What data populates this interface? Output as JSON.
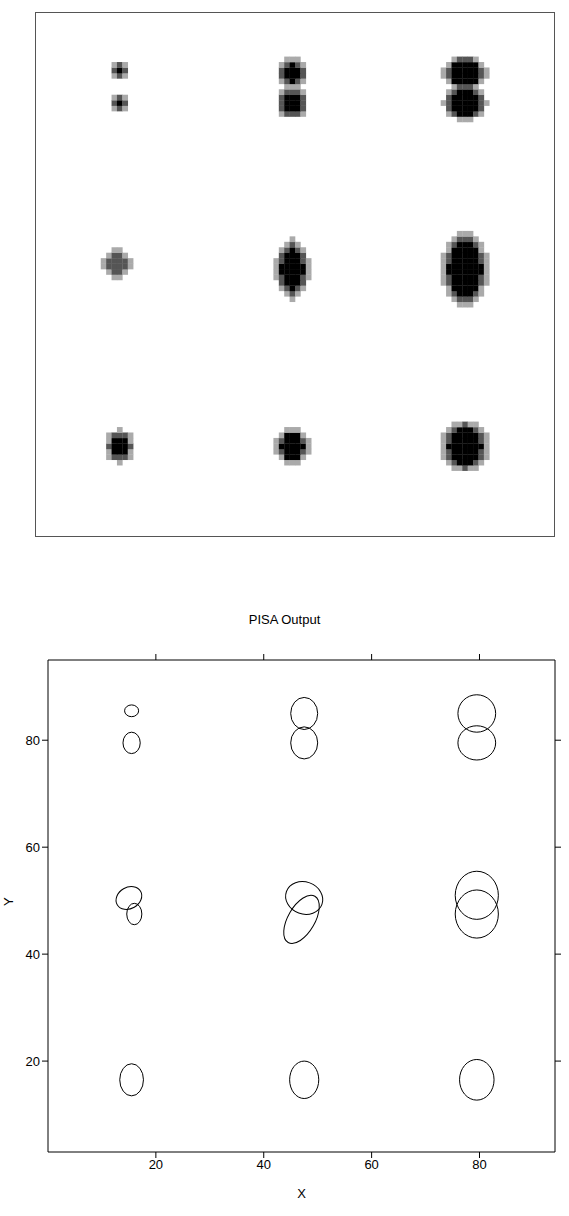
{
  "chart_data": [
    {
      "type": "image",
      "xlim": [
        0,
        96
      ],
      "ylim": [
        0,
        96
      ],
      "sources": [
        {
          "x": 15.5,
          "y": 85.5,
          "sx": 0.9,
          "sy": 0.9,
          "peak": 0.8
        },
        {
          "x": 15.5,
          "y": 79.5,
          "sx": 0.9,
          "sy": 1.0,
          "peak": 0.9
        },
        {
          "x": 15,
          "y": 50,
          "sx": 1.5,
          "sy": 1.5,
          "peak": 0.7
        },
        {
          "x": 15.5,
          "y": 16.5,
          "sx": 1.3,
          "sy": 1.5,
          "peak": 1.3
        },
        {
          "x": 47.5,
          "y": 85,
          "sx": 1.3,
          "sy": 1.2,
          "peak": 2
        },
        {
          "x": 47.5,
          "y": 79.5,
          "sx": 1.3,
          "sy": 1.2,
          "peak": 2
        },
        {
          "x": 47.5,
          "y": 49,
          "sx": 1.4,
          "sy": 2.5,
          "peak": 2
        },
        {
          "x": 47.5,
          "y": 16.5,
          "sx": 1.4,
          "sy": 1.6,
          "peak": 2
        },
        {
          "x": 79.5,
          "y": 85,
          "sx": 1.7,
          "sy": 1.3,
          "peak": 3
        },
        {
          "x": 79.5,
          "y": 79.5,
          "sx": 1.7,
          "sy": 1.3,
          "peak": 3
        },
        {
          "x": 79.5,
          "y": 49,
          "sx": 1.8,
          "sy": 2.8,
          "peak": 3
        },
        {
          "x": 79.5,
          "y": 16.5,
          "sx": 1.8,
          "sy": 2.0,
          "peak": 3
        }
      ]
    },
    {
      "type": "ellipse",
      "title": "PISA Output",
      "x_label": "X",
      "y_label": "Y",
      "xlim": [
        0,
        94
      ],
      "ylim": [
        3,
        95
      ],
      "xticks": [
        20,
        40,
        60,
        80
      ],
      "yticks": [
        20,
        40,
        60,
        80
      ],
      "color": "#000000",
      "ellipses": [
        {
          "x": 15.5,
          "y": 85.5,
          "rx": 1.3,
          "ry": 1.1,
          "angle": 0
        },
        {
          "x": 15.5,
          "y": 79.5,
          "rx": 1.6,
          "ry": 2,
          "angle": 0
        },
        {
          "x": 15,
          "y": 50.5,
          "rx": 2.5,
          "ry": 2,
          "angle": 30
        },
        {
          "x": 16,
          "y": 47.5,
          "rx": 1.4,
          "ry": 2,
          "angle": 0
        },
        {
          "x": 15.5,
          "y": 16.5,
          "rx": 2.2,
          "ry": 3,
          "angle": 0
        },
        {
          "x": 47.5,
          "y": 85,
          "rx": 2.5,
          "ry": 3,
          "angle": 0
        },
        {
          "x": 47.5,
          "y": 79.5,
          "rx": 2.5,
          "ry": 3,
          "angle": 0
        },
        {
          "x": 47.5,
          "y": 50.5,
          "rx": 3.5,
          "ry": 3,
          "angle": -20
        },
        {
          "x": 47,
          "y": 46.5,
          "rx": 2.5,
          "ry": 5,
          "angle": -30
        },
        {
          "x": 47.5,
          "y": 16.5,
          "rx": 2.7,
          "ry": 3.5,
          "angle": 0
        },
        {
          "x": 79.5,
          "y": 85,
          "rx": 3.5,
          "ry": 3.5,
          "angle": 0
        },
        {
          "x": 79.5,
          "y": 79.5,
          "rx": 3.5,
          "ry": 3.2,
          "angle": 0
        },
        {
          "x": 79.5,
          "y": 51,
          "rx": 4,
          "ry": 4.5,
          "angle": 0
        },
        {
          "x": 79.5,
          "y": 47.5,
          "rx": 4,
          "ry": 4.5,
          "angle": 0
        },
        {
          "x": 79.5,
          "y": 16.5,
          "rx": 3.2,
          "ry": 3.8,
          "angle": 0
        }
      ]
    }
  ]
}
